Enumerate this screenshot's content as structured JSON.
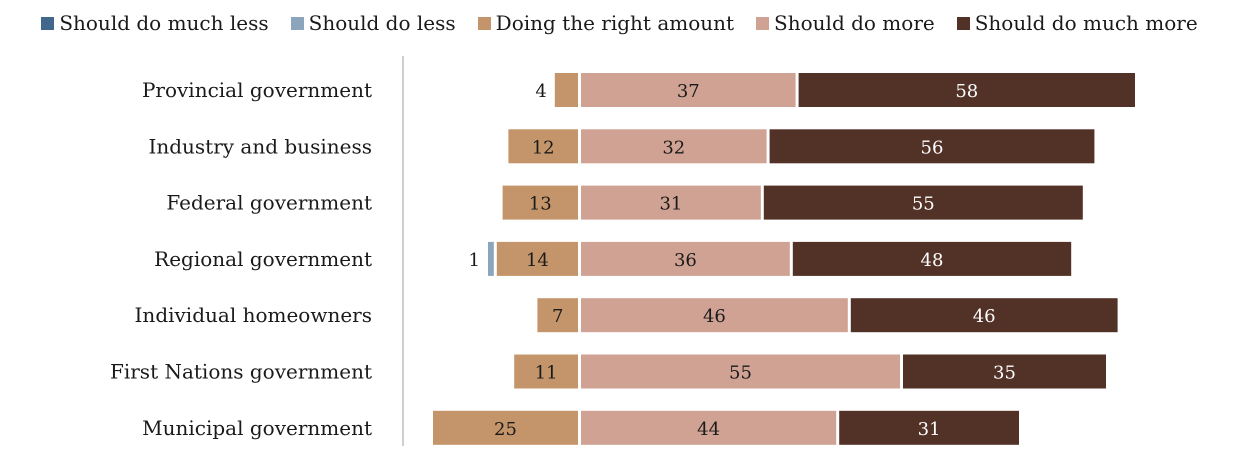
{
  "chart_data": {
    "type": "bar",
    "orientation": "horizontal",
    "stacked": true,
    "diverging": true,
    "legend_position": "top",
    "grid": false,
    "categories": [
      "Provincial government",
      "Industry and business",
      "Federal government",
      "Regional government",
      "Individual homeowners",
      "First Nations government",
      "Municipal government"
    ],
    "series": [
      {
        "name": "Should do much less",
        "color": "#41678c",
        "side": "negative",
        "values": [
          0,
          0,
          0,
          0,
          0,
          0,
          0
        ]
      },
      {
        "name": "Should do less",
        "color": "#8ba5bd",
        "side": "negative",
        "values": [
          0,
          0,
          0,
          1,
          0,
          0,
          0
        ]
      },
      {
        "name": "Doing the right amount",
        "color": "#c4956a",
        "side": "negative",
        "values": [
          4,
          12,
          13,
          14,
          7,
          11,
          25
        ]
      },
      {
        "name": "Should do more",
        "color": "#cfa293",
        "side": "positive",
        "values": [
          37,
          32,
          31,
          36,
          46,
          55,
          44
        ]
      },
      {
        "name": "Should do much more",
        "color": "#523127",
        "side": "positive",
        "values": [
          58,
          56,
          55,
          48,
          46,
          35,
          31
        ]
      }
    ]
  }
}
